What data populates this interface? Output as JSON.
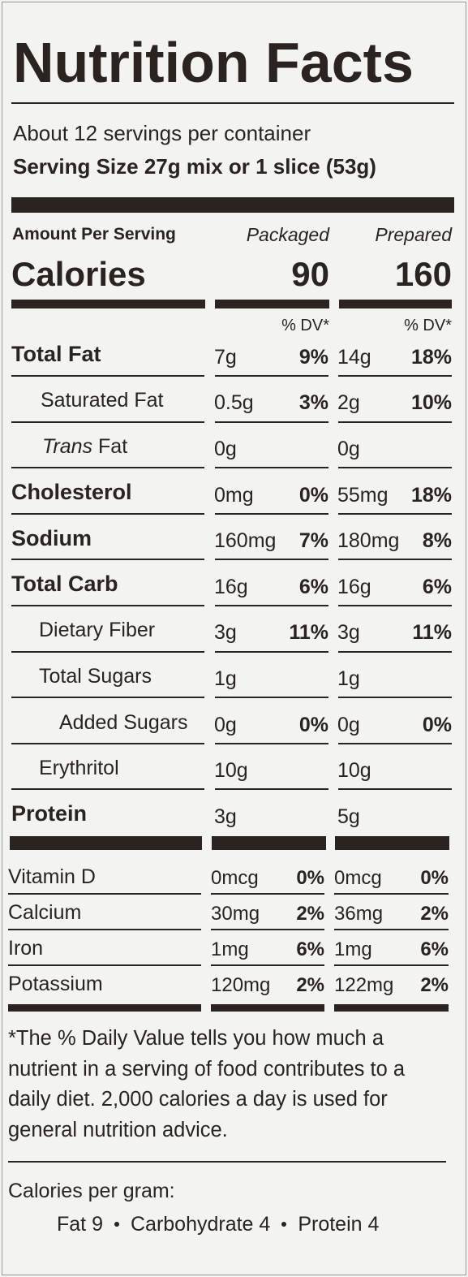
{
  "title": "Nutrition Facts",
  "servings": "About 12 servings per container",
  "serving_size": "Serving Size 27g mix or 1 slice (53g)",
  "amount_per_serving": "Amount Per Serving",
  "columns": [
    "Packaged",
    "Prepared"
  ],
  "calories": {
    "label": "Calories",
    "values": [
      "90",
      "160"
    ]
  },
  "dv_header": "% DV*",
  "rows": [
    {
      "label": "Total Fat",
      "bold": true,
      "packaged_amount": "7g",
      "packaged_dv": "9%",
      "prepared_amount": "14g",
      "prepared_dv": "18%"
    },
    {
      "label": "Saturated Fat",
      "packaged_amount": "0.5g",
      "packaged_dv": "3%",
      "prepared_amount": "2g",
      "prepared_dv": "10%"
    },
    {
      "label_italic": "Trans",
      "label": "Fat",
      "packaged_amount": "0g",
      "prepared_amount": "0g"
    },
    {
      "label": "Cholesterol",
      "bold": true,
      "packaged_amount": "0mg",
      "packaged_dv": "0%",
      "prepared_amount": "55mg",
      "prepared_dv": "18%"
    },
    {
      "label": "Sodium",
      "bold": true,
      "packaged_amount": "160mg",
      "packaged_dv": "7%",
      "prepared_amount": "180mg",
      "prepared_dv": "8%"
    },
    {
      "label": "Total Carb",
      "bold": true,
      "packaged_amount": "16g",
      "packaged_dv": "6%",
      "prepared_amount": "16g",
      "prepared_dv": "6%"
    },
    {
      "label": "Dietary Fiber",
      "packaged_amount": "3g",
      "packaged_dv": "11%",
      "prepared_amount": "3g",
      "prepared_dv": "11%"
    },
    {
      "label": "Total Sugars",
      "packaged_amount": "1g",
      "prepared_amount": "1g"
    },
    {
      "label": "Added Sugars",
      "packaged_amount": "0g",
      "packaged_dv": "0%",
      "prepared_amount": "0g",
      "prepared_dv": "0%"
    },
    {
      "label": "Erythritol",
      "packaged_amount": "10g",
      "prepared_amount": "10g"
    },
    {
      "label": "Protein",
      "bold": true,
      "packaged_amount": "3g",
      "prepared_amount": "5g"
    }
  ],
  "vitamins": [
    {
      "label": "Vitamin D",
      "packaged_amount": "0mcg",
      "packaged_dv": "0%",
      "prepared_amount": "0mcg",
      "prepared_dv": "0%"
    },
    {
      "label": "Calcium",
      "packaged_amount": "30mg",
      "packaged_dv": "2%",
      "prepared_amount": "36mg",
      "prepared_dv": "2%"
    },
    {
      "label": "Iron",
      "packaged_amount": "1mg",
      "packaged_dv": "6%",
      "prepared_amount": "1mg",
      "prepared_dv": "6%"
    },
    {
      "label": "Potassium",
      "packaged_amount": "120mg",
      "packaged_dv": "2%",
      "prepared_amount": "122mg",
      "prepared_dv": "2%"
    }
  ],
  "footnote": "*The % Daily Value tells you how much a nutrient in a serving of food contributes to a daily diet. 2,000 calories a day is used for general nutrition advice.",
  "calories_per_gram": {
    "title": "Calories per gram:",
    "items": [
      "Fat 9",
      "Carbohydrate 4",
      "Protein 4"
    ]
  }
}
